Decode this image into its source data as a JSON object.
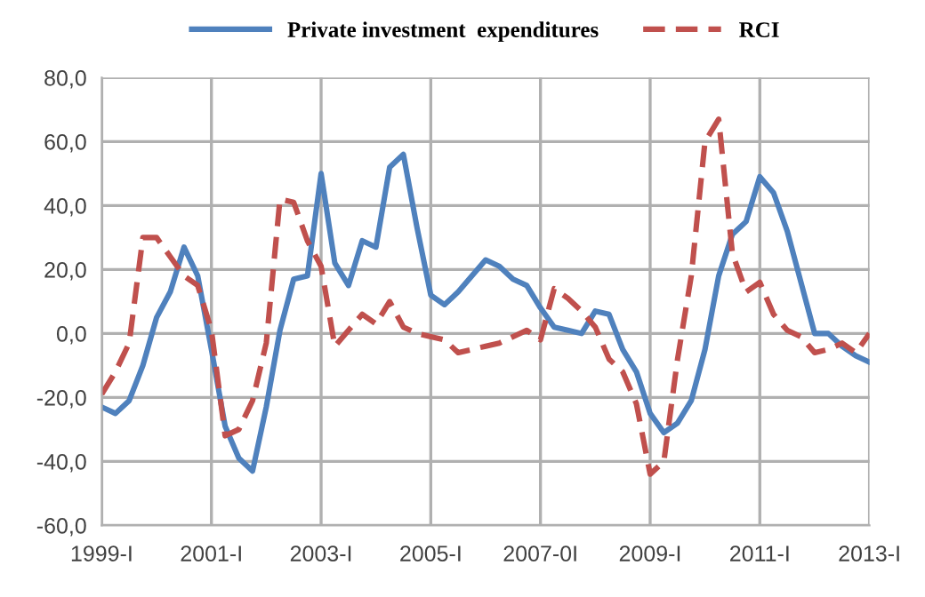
{
  "chart_data": {
    "type": "line",
    "categories": [
      "1999-I",
      null,
      null,
      null,
      null,
      null,
      null,
      null,
      "2001-I",
      null,
      null,
      null,
      null,
      null,
      null,
      null,
      "2003-I",
      null,
      null,
      null,
      null,
      null,
      null,
      null,
      "2005-I",
      null,
      null,
      null,
      null,
      null,
      null,
      null,
      "2007-0I",
      null,
      null,
      null,
      null,
      null,
      null,
      null,
      "2009-I",
      null,
      null,
      null,
      null,
      null,
      null,
      null,
      "2011-I",
      null,
      null,
      null,
      null,
      null,
      null,
      null,
      "2013-I"
    ],
    "series": [
      {
        "name": "Private investment  expenditures",
        "color": "#4f81bd",
        "line_style": "solid",
        "values": [
          -23,
          -25,
          -21,
          -10,
          5,
          13,
          27,
          18,
          -5,
          -29,
          -39,
          -43,
          -23,
          1,
          17,
          18,
          50,
          22,
          15,
          29,
          27,
          52,
          56,
          33,
          12,
          9,
          13,
          18,
          23,
          21,
          17,
          15,
          8,
          2,
          1,
          0,
          7,
          6,
          -5,
          -12,
          -25,
          -31,
          -28,
          -21,
          -5,
          18,
          31,
          35,
          49,
          44,
          32,
          16,
          0,
          0,
          -4,
          -7,
          -9
        ]
      },
      {
        "name": "RCI",
        "color": "#c0504d",
        "line_style": "dashed",
        "values": [
          -19,
          -12,
          -3,
          30,
          30,
          24,
          18,
          15,
          1,
          -32,
          -30,
          -21,
          -3,
          42,
          41,
          29,
          21,
          -4,
          1,
          6,
          3,
          10,
          2,
          0,
          -1,
          -2,
          -6,
          -5,
          -4,
          -3,
          -1,
          1,
          -2,
          14,
          11,
          7,
          2,
          -8,
          -12,
          -22,
          -44,
          -40,
          -8,
          18,
          60,
          67,
          25,
          13,
          16,
          6,
          1,
          -1,
          -6,
          -5,
          -3,
          -6,
          0
        ]
      }
    ],
    "ylim": [
      -60,
      80
    ],
    "yticks": [
      {
        "value": -60,
        "label": "-60,0"
      },
      {
        "value": -40,
        "label": "-40,0"
      },
      {
        "value": -20,
        "label": "-20,0"
      },
      {
        "value": 0,
        "label": "0,0"
      },
      {
        "value": 20,
        "label": "20,0"
      },
      {
        "value": 40,
        "label": "40,0"
      },
      {
        "value": 60,
        "label": "60,0"
      },
      {
        "value": 80,
        "label": "80,0"
      }
    ],
    "grid": true,
    "legend": "top",
    "marker": "none"
  }
}
